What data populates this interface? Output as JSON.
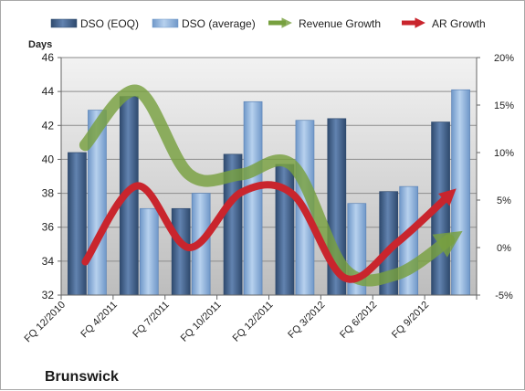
{
  "chart_data": {
    "type": "bar",
    "title": "",
    "company_label": "Brunswick",
    "ylabel_left": "Days",
    "categories": [
      "FQ 12/2010",
      "FQ 4/2011",
      "FQ 7/2011",
      "FQ 10/2011",
      "FQ 12/2011",
      "FQ 3/2012",
      "FQ 6/2012",
      "FQ 9/2012"
    ],
    "left_axis": {
      "min": 32,
      "max": 46,
      "ticks": [
        32,
        34,
        36,
        38,
        40,
        42,
        44,
        46
      ]
    },
    "right_axis": {
      "min": -5,
      "max": 20,
      "ticks": [
        -5,
        0,
        5,
        10,
        15,
        20
      ],
      "tick_labels": [
        "-5%",
        "0%",
        "5%",
        "10%",
        "15%",
        "20%"
      ]
    },
    "series": [
      {
        "name": "DSO (EOQ)",
        "type": "bar",
        "axis": "left",
        "color": "#4a6b96",
        "values": [
          40.4,
          43.7,
          37.1,
          40.3,
          39.7,
          42.4,
          38.1,
          42.2
        ]
      },
      {
        "name": "DSO (average)",
        "type": "bar",
        "axis": "left",
        "color": "#8fb3df",
        "values": [
          42.9,
          37.1,
          38.0,
          43.4,
          42.3,
          37.4,
          38.4,
          44.1
        ]
      },
      {
        "name": "Revenue Growth",
        "type": "line",
        "axis": "right",
        "color": "#77a03f",
        "values": [
          10.8,
          16.5,
          7.7,
          7.7,
          8.6,
          -2.3,
          -2.8,
          0.8
        ]
      },
      {
        "name": "AR Growth",
        "type": "line",
        "axis": "right",
        "color": "#c9252d",
        "values": [
          -1.5,
          6.5,
          0.0,
          5.8,
          5.6,
          -3.2,
          0.5,
          5.5
        ]
      }
    ],
    "grid": true,
    "legend_position": "top"
  }
}
